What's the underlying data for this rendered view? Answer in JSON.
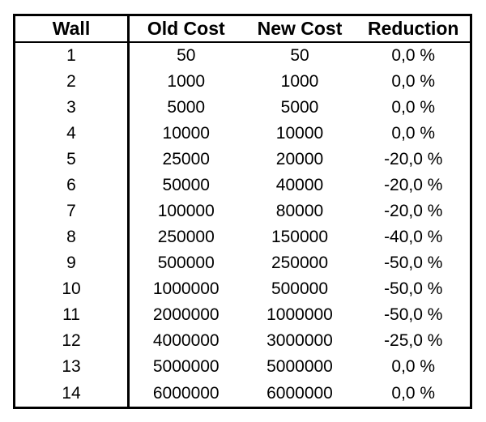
{
  "colors": {
    "background": "#ffffff",
    "border": "#000000",
    "text": "#000000"
  },
  "chart_data": {
    "type": "table",
    "title": "",
    "columns": [
      "Wall",
      "Old Cost",
      "New Cost",
      "Reduction"
    ],
    "rows": [
      [
        "1",
        "50",
        "50",
        "0,0 %"
      ],
      [
        "2",
        "1000",
        "1000",
        "0,0 %"
      ],
      [
        "3",
        "5000",
        "5000",
        "0,0 %"
      ],
      [
        "4",
        "10000",
        "10000",
        "0,0 %"
      ],
      [
        "5",
        "25000",
        "20000",
        "-20,0 %"
      ],
      [
        "6",
        "50000",
        "40000",
        "-20,0 %"
      ],
      [
        "7",
        "100000",
        "80000",
        "-20,0 %"
      ],
      [
        "8",
        "250000",
        "150000",
        "-40,0 %"
      ],
      [
        "9",
        "500000",
        "250000",
        "-50,0 %"
      ],
      [
        "10",
        "1000000",
        "500000",
        "-50,0 %"
      ],
      [
        "11",
        "2000000",
        "1000000",
        "-50,0 %"
      ],
      [
        "12",
        "4000000",
        "3000000",
        "-25,0 %"
      ],
      [
        "13",
        "5000000",
        "5000000",
        "0,0 %"
      ],
      [
        "14",
        "6000000",
        "6000000",
        "0,0 %"
      ]
    ],
    "numeric": {
      "wall": [
        1,
        2,
        3,
        4,
        5,
        6,
        7,
        8,
        9,
        10,
        11,
        12,
        13,
        14
      ],
      "old_cost": [
        50,
        1000,
        5000,
        10000,
        25000,
        50000,
        100000,
        250000,
        500000,
        1000000,
        2000000,
        4000000,
        5000000,
        6000000
      ],
      "new_cost": [
        50,
        1000,
        5000,
        10000,
        20000,
        40000,
        80000,
        150000,
        250000,
        500000,
        1000000,
        3000000,
        5000000,
        6000000
      ],
      "reduction_percent": [
        0,
        0,
        0,
        0,
        -20,
        -20,
        -20,
        -40,
        -50,
        -50,
        -50,
        -25,
        0,
        0
      ]
    }
  }
}
